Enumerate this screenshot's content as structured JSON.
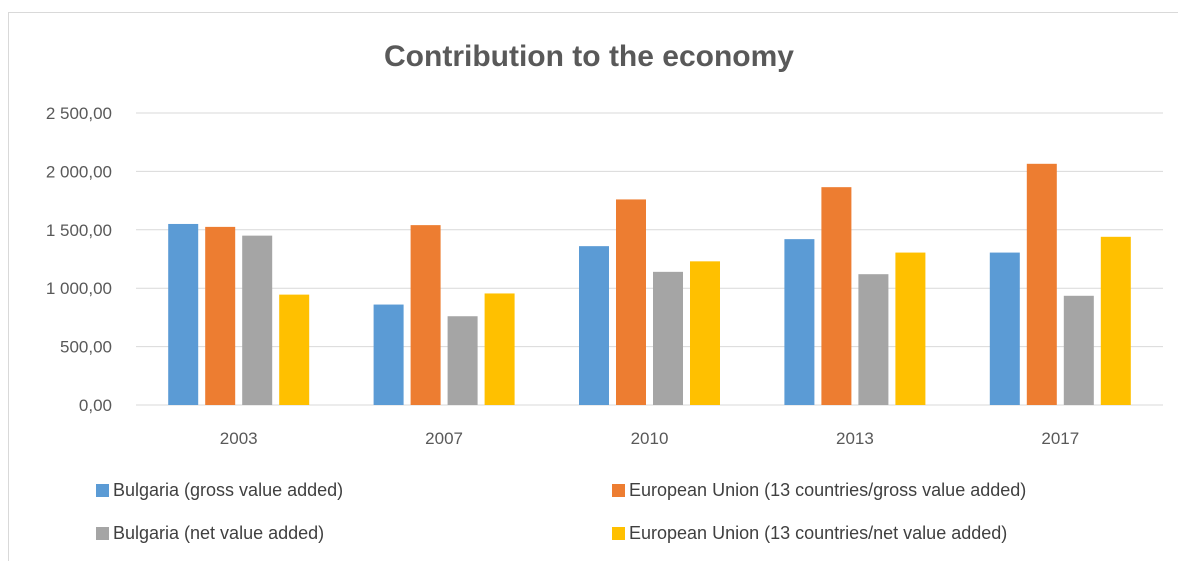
{
  "chart_data": {
    "type": "bar",
    "title": "Contribution to the economy",
    "categories": [
      "2003",
      "2007",
      "2010",
      "2013",
      "2017"
    ],
    "ylim": [
      0,
      2500
    ],
    "yticks": [
      0,
      500,
      1000,
      1500,
      2000,
      2500
    ],
    "ytick_labels": [
      "0,00",
      "500,00",
      "1 000,00",
      "1 500,00",
      "2 000,00",
      "2 500,00"
    ],
    "grid": true,
    "legend_position": "bottom",
    "series": [
      {
        "name": "Bulgaria (gross value added)",
        "color": "#5b9bd5",
        "values": [
          1550,
          860,
          1360,
          1420,
          1305
        ]
      },
      {
        "name": "European Union (13 countries/gross value added)",
        "color": "#ed7d31",
        "values": [
          1525,
          1540,
          1760,
          1865,
          2065
        ]
      },
      {
        "name": "Bulgaria (net value added)",
        "color": "#a5a5a5",
        "values": [
          1450,
          760,
          1140,
          1120,
          935
        ]
      },
      {
        "name": "European Union (13 countries/net value added)",
        "color": "#ffc000",
        "values": [
          945,
          955,
          1230,
          1305,
          1440
        ]
      }
    ]
  }
}
